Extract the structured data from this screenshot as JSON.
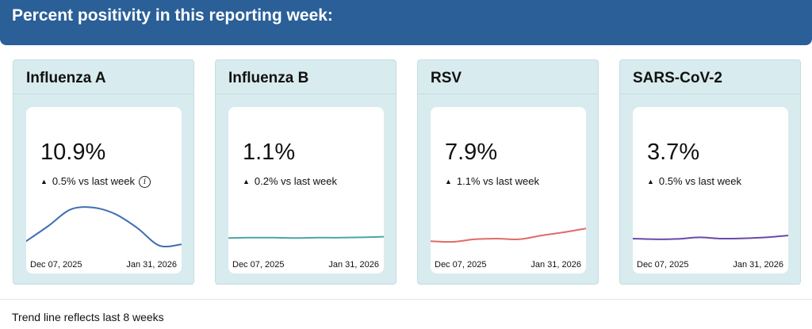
{
  "header": {
    "title": "Percent positivity in this reporting week:"
  },
  "cards": [
    {
      "title": "Influenza A",
      "value": "10.9%",
      "change": "0.5% vs last week",
      "has_info": true,
      "color": "#3e6fb0",
      "start_date": "Dec 07, 2025",
      "end_date": "Jan 31, 2026",
      "trend": [
        1.6,
        4.0,
        6.6,
        6.9,
        5.9,
        3.7,
        0.9,
        1.1
      ]
    },
    {
      "title": "Influenza B",
      "value": "1.1%",
      "change": "0.2% vs last week",
      "has_info": false,
      "color": "#4aa6a6",
      "start_date": "Dec 07, 2025",
      "end_date": "Jan 31, 2026",
      "trend": [
        2.1,
        2.15,
        2.15,
        2.1,
        2.15,
        2.15,
        2.2,
        2.3
      ]
    },
    {
      "title": "RSV",
      "value": "7.9%",
      "change": "1.1% vs last week",
      "has_info": false,
      "color": "#e06a6a",
      "start_date": "Dec 07, 2025",
      "end_date": "Jan 31, 2026",
      "trend": [
        1.6,
        1.5,
        1.9,
        2.0,
        1.9,
        2.5,
        3.0,
        3.6
      ]
    },
    {
      "title": "SARS-CoV-2",
      "value": "3.7%",
      "change": "0.5% vs last week",
      "has_info": false,
      "color": "#6a4aa6",
      "start_date": "Dec 07, 2025",
      "end_date": "Jan 31, 2026",
      "trend": [
        2.0,
        1.9,
        1.95,
        2.2,
        2.0,
        2.05,
        2.2,
        2.5
      ]
    }
  ],
  "footnote": "Trend line reflects last 8 weeks"
}
